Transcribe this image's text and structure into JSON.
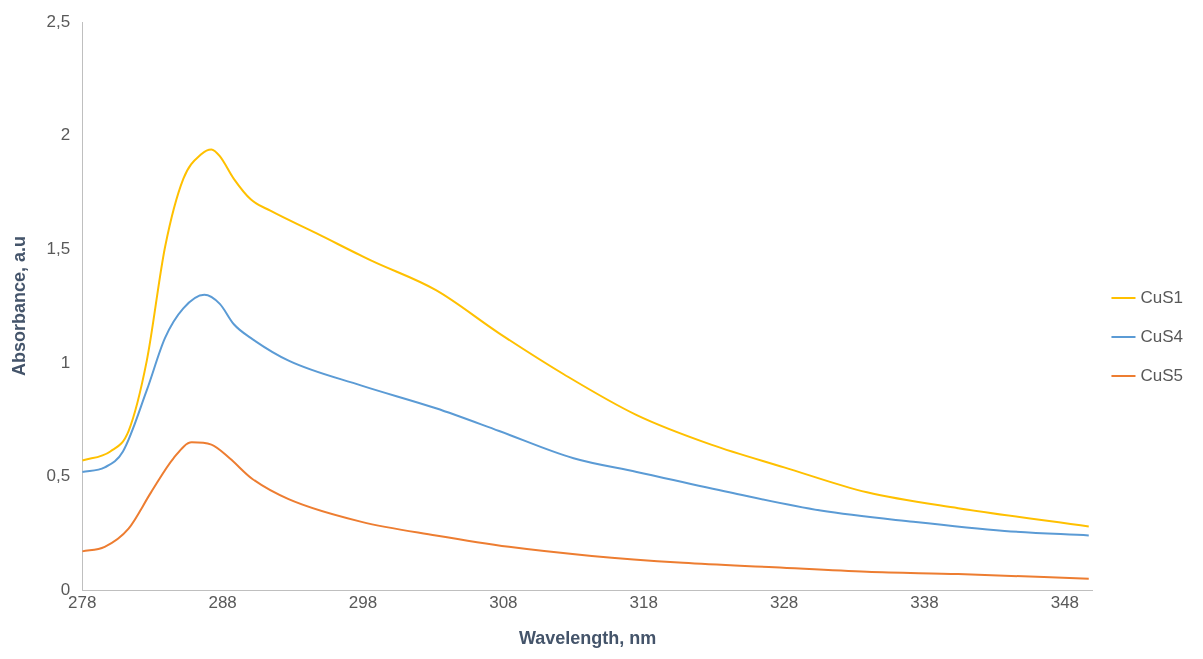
{
  "chart_data": {
    "type": "line",
    "xlabel": "Wavelength, nm",
    "ylabel": "Absorbance, a.u",
    "xlim": [
      278,
      350
    ],
    "xticks": [
      278,
      288,
      298,
      308,
      318,
      328,
      338,
      348
    ],
    "ylim": [
      0,
      2.5
    ],
    "yticks": [
      {
        "value": 0,
        "label": "0"
      },
      {
        "value": 0.5,
        "label": "0,5"
      },
      {
        "value": 1,
        "label": "1"
      },
      {
        "value": 1.5,
        "label": "1,5"
      },
      {
        "value": 2,
        "label": "2"
      },
      {
        "value": 2.5,
        "label": "2,5"
      }
    ],
    "grid": false,
    "legend": "right",
    "marker": "none",
    "line_style": "solid",
    "series": [
      {
        "name": "CuS1",
        "color": "#ffc000",
        "x": [
          278,
          280,
          281.3,
          282.6,
          283.9,
          285.2,
          286.5,
          287.2,
          287.8,
          288.8,
          290,
          291.4,
          294.7,
          298.6,
          303.2,
          307.7,
          312.3,
          317.5,
          322.8,
          328,
          333.9,
          340.4,
          349.7
        ],
        "values": [
          0.57,
          0.61,
          0.7,
          1.01,
          1.51,
          1.81,
          1.92,
          1.94,
          1.91,
          1.81,
          1.72,
          1.67,
          1.57,
          1.45,
          1.32,
          1.13,
          0.95,
          0.77,
          0.64,
          0.54,
          0.43,
          0.36,
          0.28
        ]
      },
      {
        "name": "CuS4",
        "color": "#5b9bd5",
        "x": [
          278,
          279.6,
          280.9,
          282.6,
          283.9,
          285.2,
          286.7,
          287.8,
          288.8,
          290,
          292.7,
          297.9,
          303.2,
          307.7,
          313,
          317.5,
          324.1,
          330.6,
          337.2,
          343.7,
          349.7
        ],
        "values": [
          0.52,
          0.54,
          0.61,
          0.88,
          1.11,
          1.24,
          1.3,
          1.26,
          1.17,
          1.11,
          1.01,
          0.9,
          0.8,
          0.7,
          0.58,
          0.52,
          0.43,
          0.35,
          0.3,
          0.26,
          0.24
        ]
      },
      {
        "name": "CuS5",
        "color": "#ed7d31",
        "x": [
          278,
          279.6,
          281.3,
          282.9,
          284.5,
          285.8,
          287.2,
          288.5,
          290.1,
          292.7,
          297.9,
          303.2,
          308.4,
          314.3,
          320.8,
          327.3,
          333.9,
          340.4,
          349.7
        ],
        "values": [
          0.17,
          0.19,
          0.27,
          0.43,
          0.58,
          0.65,
          0.64,
          0.58,
          0.49,
          0.4,
          0.3,
          0.24,
          0.19,
          0.15,
          0.12,
          0.1,
          0.08,
          0.07,
          0.05
        ]
      }
    ]
  }
}
